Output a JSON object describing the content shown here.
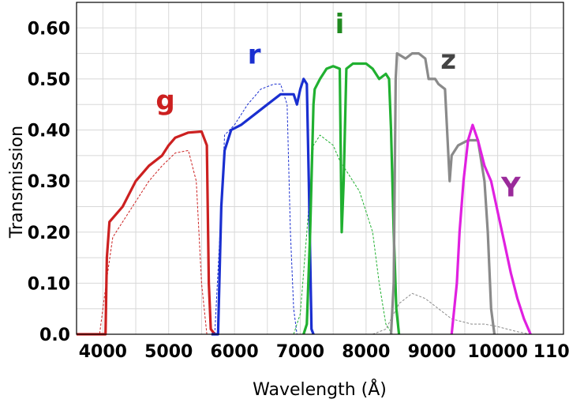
{
  "chart_data": {
    "type": "line",
    "title": "",
    "xlabel": "Wavelength (Å)",
    "ylabel": "Transmission",
    "xlim": [
      3600,
      11000
    ],
    "ylim": [
      0,
      0.65
    ],
    "grid": true,
    "x_ticks": [
      4000,
      5000,
      6000,
      7000,
      8000,
      9000,
      10000,
      11000
    ],
    "x_tick_labels": [
      "4000",
      "5000",
      "6000",
      "7000",
      "8000",
      "9000",
      "10000",
      "11000"
    ],
    "y_ticks": [
      0,
      0.1,
      0.2,
      0.3,
      0.4,
      0.5,
      0.6
    ],
    "y_tick_labels": [
      "0.0",
      "0.10",
      "0.20",
      "0.30",
      "0.40",
      "0.50",
      "0.60"
    ],
    "series": [
      {
        "name": "g",
        "style": "solid",
        "color": "#cc2020",
        "points": [
          [
            3600,
            0
          ],
          [
            4040,
            0
          ],
          [
            4060,
            0.15
          ],
          [
            4100,
            0.22
          ],
          [
            4300,
            0.25
          ],
          [
            4500,
            0.3
          ],
          [
            4700,
            0.33
          ],
          [
            4900,
            0.35
          ],
          [
            5000,
            0.37
          ],
          [
            5100,
            0.385
          ],
          [
            5300,
            0.395
          ],
          [
            5500,
            0.397
          ],
          [
            5580,
            0.37
          ],
          [
            5610,
            0.1
          ],
          [
            5640,
            0.01
          ],
          [
            5700,
            0
          ]
        ]
      },
      {
        "name": "g",
        "style": "dashed",
        "color": "#cc2020",
        "points": [
          [
            3600,
            0
          ],
          [
            3950,
            0
          ],
          [
            4050,
            0.1
          ],
          [
            4150,
            0.19
          ],
          [
            4300,
            0.22
          ],
          [
            4500,
            0.26
          ],
          [
            4700,
            0.3
          ],
          [
            4900,
            0.33
          ],
          [
            5100,
            0.355
          ],
          [
            5300,
            0.36
          ],
          [
            5420,
            0.3
          ],
          [
            5500,
            0.1
          ],
          [
            5580,
            0
          ],
          [
            11000,
            0
          ]
        ]
      },
      {
        "name": "r",
        "style": "solid",
        "color": "#1a2fd0",
        "points": [
          [
            5650,
            0
          ],
          [
            5750,
            0
          ],
          [
            5800,
            0.25
          ],
          [
            5850,
            0.36
          ],
          [
            5950,
            0.4
          ],
          [
            6100,
            0.41
          ],
          [
            6300,
            0.43
          ],
          [
            6500,
            0.45
          ],
          [
            6700,
            0.47
          ],
          [
            6800,
            0.47
          ],
          [
            6900,
            0.47
          ],
          [
            6950,
            0.45
          ],
          [
            7000,
            0.48
          ],
          [
            7050,
            0.5
          ],
          [
            7100,
            0.49
          ],
          [
            7130,
            0.3
          ],
          [
            7170,
            0.01
          ],
          [
            7200,
            0
          ]
        ]
      },
      {
        "name": "r",
        "style": "dashed",
        "color": "#1a2fd0",
        "points": [
          [
            5700,
            0
          ],
          [
            5780,
            0.2
          ],
          [
            5850,
            0.39
          ],
          [
            6000,
            0.41
          ],
          [
            6200,
            0.45
          ],
          [
            6400,
            0.48
          ],
          [
            6600,
            0.49
          ],
          [
            6700,
            0.49
          ],
          [
            6800,
            0.45
          ],
          [
            6850,
            0.2
          ],
          [
            6900,
            0.05
          ],
          [
            6950,
            0
          ]
        ]
      },
      {
        "name": "i",
        "style": "solid",
        "color": "#20b030",
        "points": [
          [
            7050,
            0
          ],
          [
            7100,
            0.02
          ],
          [
            7150,
            0.2
          ],
          [
            7200,
            0.45
          ],
          [
            7220,
            0.48
          ],
          [
            7300,
            0.5
          ],
          [
            7400,
            0.52
          ],
          [
            7500,
            0.525
          ],
          [
            7600,
            0.52
          ],
          [
            7620,
            0.3
          ],
          [
            7630,
            0.2
          ],
          [
            7660,
            0.3
          ],
          [
            7700,
            0.52
          ],
          [
            7800,
            0.53
          ],
          [
            8000,
            0.53
          ],
          [
            8100,
            0.52
          ],
          [
            8200,
            0.5
          ],
          [
            8300,
            0.51
          ],
          [
            8350,
            0.5
          ],
          [
            8380,
            0.4
          ],
          [
            8420,
            0.2
          ],
          [
            8460,
            0.05
          ],
          [
            8500,
            0
          ]
        ]
      },
      {
        "name": "i",
        "style": "dashed",
        "color": "#20b030",
        "points": [
          [
            6900,
            0
          ],
          [
            7000,
            0.04
          ],
          [
            7100,
            0.2
          ],
          [
            7200,
            0.37
          ],
          [
            7300,
            0.39
          ],
          [
            7500,
            0.37
          ],
          [
            7600,
            0.34
          ],
          [
            7700,
            0.32
          ],
          [
            7800,
            0.3
          ],
          [
            7900,
            0.28
          ],
          [
            8000,
            0.24
          ],
          [
            8100,
            0.2
          ],
          [
            8200,
            0.1
          ],
          [
            8300,
            0.02
          ],
          [
            8400,
            0
          ]
        ]
      },
      {
        "name": "z",
        "style": "solid",
        "color": "#8a8a8a",
        "points": [
          [
            8380,
            0
          ],
          [
            8420,
            0.1
          ],
          [
            8450,
            0.5
          ],
          [
            8470,
            0.55
          ],
          [
            8600,
            0.54
          ],
          [
            8700,
            0.55
          ],
          [
            8800,
            0.55
          ],
          [
            8900,
            0.54
          ],
          [
            8950,
            0.5
          ],
          [
            9050,
            0.5
          ],
          [
            9100,
            0.49
          ],
          [
            9200,
            0.48
          ],
          [
            9270,
            0.3
          ],
          [
            9300,
            0.35
          ],
          [
            9350,
            0.36
          ],
          [
            9400,
            0.37
          ],
          [
            9550,
            0.38
          ],
          [
            9700,
            0.38
          ],
          [
            9800,
            0.3
          ],
          [
            9850,
            0.2
          ],
          [
            9900,
            0.05
          ],
          [
            9950,
            0
          ]
        ]
      },
      {
        "name": "z",
        "style": "dashed",
        "color": "#8a8a8a",
        "points": [
          [
            8100,
            0
          ],
          [
            8300,
            0.01
          ],
          [
            8500,
            0.06
          ],
          [
            8700,
            0.08
          ],
          [
            8900,
            0.07
          ],
          [
            9100,
            0.05
          ],
          [
            9300,
            0.03
          ],
          [
            9600,
            0.02
          ],
          [
            9800,
            0.02
          ],
          [
            10000,
            0.015
          ],
          [
            10300,
            0.005
          ],
          [
            10500,
            0
          ]
        ]
      },
      {
        "name": "Y",
        "style": "solid",
        "color": "#e020e0",
        "points": [
          [
            9300,
            0
          ],
          [
            9380,
            0.1
          ],
          [
            9420,
            0.2
          ],
          [
            9480,
            0.3
          ],
          [
            9550,
            0.38
          ],
          [
            9620,
            0.41
          ],
          [
            9700,
            0.38
          ],
          [
            9800,
            0.33
          ],
          [
            9900,
            0.3
          ],
          [
            10000,
            0.24
          ],
          [
            10100,
            0.18
          ],
          [
            10200,
            0.12
          ],
          [
            10300,
            0.07
          ],
          [
            10400,
            0.03
          ],
          [
            10500,
            0
          ]
        ]
      }
    ],
    "annotations": [
      {
        "text": "g",
        "x": 4950,
        "y": 0.44,
        "color": "#cc2020"
      },
      {
        "text": "r",
        "x": 6300,
        "y": 0.53,
        "color": "#1a2fd0"
      },
      {
        "text": "i",
        "x": 7600,
        "y": 0.59,
        "color": "#208a20"
      },
      {
        "text": "z",
        "x": 9250,
        "y": 0.52,
        "color": "#444444"
      },
      {
        "text": "Y",
        "x": 10200,
        "y": 0.27,
        "color": "#9a2a9a"
      }
    ]
  }
}
